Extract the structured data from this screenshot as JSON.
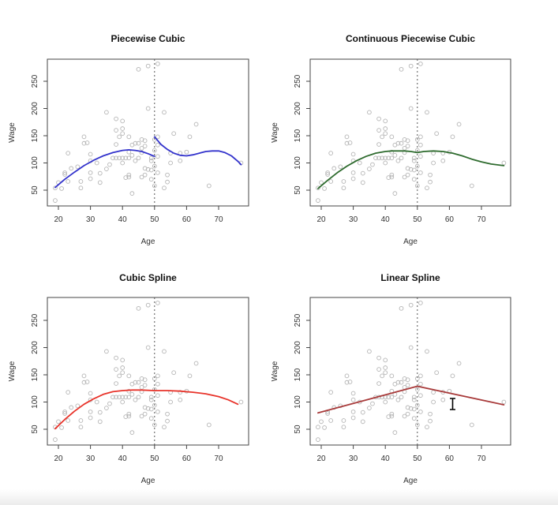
{
  "chart_data": [
    {
      "type": "scatter",
      "panel": "top-left",
      "title": "Piecewise Cubic",
      "xlabel": "Age",
      "ylabel": "Wage",
      "xticks": [
        20,
        30,
        40,
        50,
        60,
        70
      ],
      "yticks": [
        50,
        100,
        150,
        200,
        250
      ],
      "xlim": [
        17.5,
        80
      ],
      "ylim": [
        21,
        290
      ],
      "knot": 50,
      "fit": {
        "name": "piecewise cubic fit",
        "color": "#3333cc",
        "segments": [
          [
            [
              19,
              55
            ],
            [
              22,
              70
            ],
            [
              25,
              83
            ],
            [
              28,
              95
            ],
            [
              31,
              105
            ],
            [
              34,
              113
            ],
            [
              37,
              119
            ],
            [
              40,
              123
            ],
            [
              42,
              124
            ],
            [
              44,
              123
            ],
            [
              46,
              121
            ],
            [
              48,
              117
            ],
            [
              50,
              112
            ]
          ],
          [
            [
              50,
              148
            ],
            [
              51,
              141
            ],
            [
              52,
              134
            ],
            [
              54,
              125
            ],
            [
              56,
              118
            ],
            [
              58,
              114
            ],
            [
              60,
              113
            ],
            [
              62,
              115
            ],
            [
              64,
              118
            ],
            [
              66,
              121
            ],
            [
              68,
              122
            ],
            [
              70,
              122
            ],
            [
              72,
              119
            ],
            [
              74,
              113
            ],
            [
              76,
              103
            ],
            [
              77,
              97
            ]
          ]
        ]
      }
    },
    {
      "type": "scatter",
      "panel": "top-right",
      "title": "Continuous Piecewise Cubic",
      "xlabel": "Age",
      "ylabel": "Wage",
      "xticks": [
        20,
        30,
        40,
        50,
        60,
        70
      ],
      "yticks": [
        50,
        100,
        150,
        200,
        250
      ],
      "xlim": [
        17.5,
        80
      ],
      "ylim": [
        21,
        290
      ],
      "knot": 50,
      "fit": {
        "name": "continuous piecewise cubic fit",
        "color": "#2e6b2e",
        "segments": [
          [
            [
              19,
              53
            ],
            [
              22,
              68
            ],
            [
              25,
              82
            ],
            [
              28,
              94
            ],
            [
              31,
              104
            ],
            [
              34,
              112
            ],
            [
              37,
              118
            ],
            [
              40,
              121
            ],
            [
              42,
              122
            ],
            [
              44,
              122
            ],
            [
              46,
              122
            ],
            [
              48,
              121
            ],
            [
              50,
              119
            ],
            [
              52,
              121
            ],
            [
              55,
              122
            ],
            [
              58,
              121
            ],
            [
              61,
              118
            ],
            [
              64,
              113
            ],
            [
              67,
              107
            ],
            [
              70,
              102
            ],
            [
              73,
              98
            ],
            [
              77,
              95
            ]
          ]
        ]
      }
    },
    {
      "type": "scatter",
      "panel": "bottom-left",
      "title": "Cubic Spline",
      "xlabel": "Age",
      "ylabel": "Wage",
      "xticks": [
        20,
        30,
        40,
        50,
        60,
        70
      ],
      "yticks": [
        50,
        100,
        150,
        200,
        250
      ],
      "xlim": [
        17.5,
        80
      ],
      "ylim": [
        21,
        290
      ],
      "knot": 50,
      "fit": {
        "name": "cubic spline fit",
        "color": "#e8332a",
        "segments": [
          [
            [
              19,
              51
            ],
            [
              22,
              68
            ],
            [
              25,
              83
            ],
            [
              28,
              96
            ],
            [
              31,
              106
            ],
            [
              34,
              114
            ],
            [
              37,
              119
            ],
            [
              40,
              121
            ],
            [
              43,
              122
            ],
            [
              46,
              122
            ],
            [
              50,
              121
            ],
            [
              54,
              121
            ],
            [
              58,
              120
            ],
            [
              62,
              118
            ],
            [
              66,
              115
            ],
            [
              70,
              110
            ],
            [
              73,
              104
            ],
            [
              76,
              96
            ]
          ]
        ]
      }
    },
    {
      "type": "scatter",
      "panel": "bottom-right",
      "title": "Linear Spline",
      "xlabel": "Age",
      "ylabel": "Wage",
      "xticks": [
        20,
        30,
        40,
        50,
        60,
        70
      ],
      "yticks": [
        50,
        100,
        150,
        200,
        250
      ],
      "xlim": [
        17.5,
        80
      ],
      "ylim": [
        21,
        290
      ],
      "knot": 50,
      "fit": {
        "name": "linear spline fit",
        "color": "#a83a3a",
        "segments": [
          [
            [
              19,
              80
            ],
            [
              50,
              129
            ],
            [
              77,
              95
            ]
          ]
        ]
      }
    }
  ],
  "points": [
    [
      19,
      31
    ],
    [
      19,
      54
    ],
    [
      20,
      64
    ],
    [
      21,
      53
    ],
    [
      22,
      82
    ],
    [
      22,
      79
    ],
    [
      23,
      118
    ],
    [
      23,
      66
    ],
    [
      24,
      90
    ],
    [
      26,
      93
    ],
    [
      27,
      66
    ],
    [
      27,
      54
    ],
    [
      28,
      148
    ],
    [
      28,
      136
    ],
    [
      29,
      137
    ],
    [
      30,
      116
    ],
    [
      30,
      104
    ],
    [
      30,
      82
    ],
    [
      30,
      71
    ],
    [
      32,
      100
    ],
    [
      33,
      81
    ],
    [
      33,
      64
    ],
    [
      35,
      193
    ],
    [
      35,
      89
    ],
    [
      36,
      97
    ],
    [
      37,
      109
    ],
    [
      38,
      181
    ],
    [
      38,
      160
    ],
    [
      38,
      134
    ],
    [
      38,
      109
    ],
    [
      39,
      109
    ],
    [
      39,
      148
    ],
    [
      40,
      177
    ],
    [
      40,
      163
    ],
    [
      40,
      154
    ],
    [
      40,
      109
    ],
    [
      40,
      100
    ],
    [
      41,
      109
    ],
    [
      41,
      73
    ],
    [
      42,
      148
    ],
    [
      42,
      120
    ],
    [
      42,
      109
    ],
    [
      42,
      78
    ],
    [
      42,
      74
    ],
    [
      43,
      133
    ],
    [
      43,
      114
    ],
    [
      43,
      44
    ],
    [
      44,
      104
    ],
    [
      44,
      136
    ],
    [
      45,
      272
    ],
    [
      45,
      136
    ],
    [
      45,
      109
    ],
    [
      46,
      143
    ],
    [
      46,
      127
    ],
    [
      46,
      119
    ],
    [
      46,
      74
    ],
    [
      47,
      141
    ],
    [
      47,
      131
    ],
    [
      47,
      90
    ],
    [
      47,
      78
    ],
    [
      48,
      278
    ],
    [
      48,
      200
    ],
    [
      48,
      88
    ],
    [
      49,
      70
    ],
    [
      49,
      87
    ],
    [
      49,
      104
    ],
    [
      49,
      109
    ],
    [
      50,
      143
    ],
    [
      50,
      123
    ],
    [
      50,
      94
    ],
    [
      50,
      58
    ],
    [
      51,
      282
    ],
    [
      51,
      148
    ],
    [
      51,
      133
    ],
    [
      51,
      112
    ],
    [
      51,
      82
    ],
    [
      53,
      193
    ],
    [
      53,
      54
    ],
    [
      54,
      78
    ],
    [
      54,
      65
    ],
    [
      55,
      100
    ],
    [
      55,
      118
    ],
    [
      56,
      154
    ],
    [
      58,
      118
    ],
    [
      58,
      104
    ],
    [
      60,
      120
    ],
    [
      61,
      148
    ],
    [
      63,
      171
    ],
    [
      67,
      58
    ],
    [
      77,
      100
    ]
  ],
  "cursor": {
    "type": "text-cursor"
  }
}
